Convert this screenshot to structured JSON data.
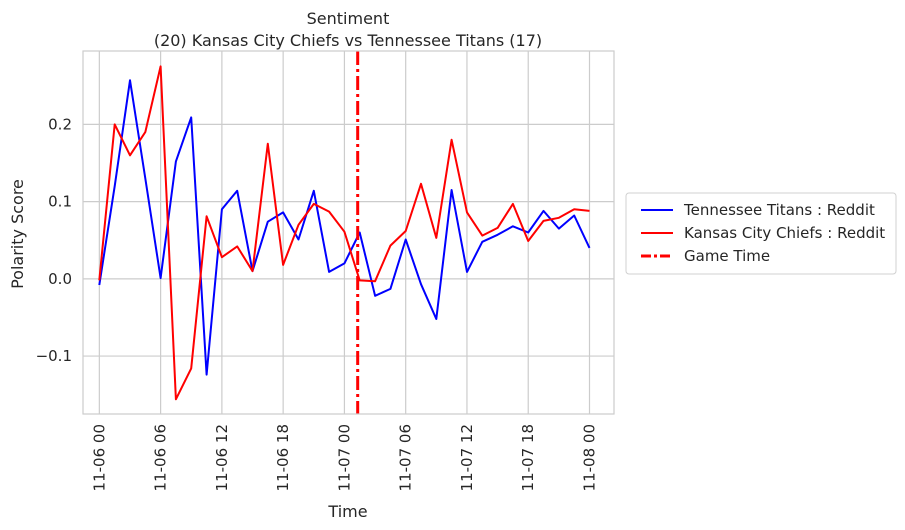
{
  "chart_data": {
    "type": "line",
    "title": "Sentiment",
    "subtitle": "(20) Kansas City Chiefs vs Tennessee Titans (17)",
    "xlabel": "Time",
    "ylabel": "Polarity Score",
    "ylim": [
      -0.175,
      0.295
    ],
    "y_ticks": [
      -0.1,
      0.0,
      0.1,
      0.2
    ],
    "y_tick_labels": [
      "−0.1",
      "0.0",
      "0.1",
      "0.2"
    ],
    "x_ticks": [
      0,
      6,
      12,
      18,
      24,
      30,
      36,
      42,
      48
    ],
    "x_tick_labels": [
      "11-06 00",
      "11-06 06",
      "11-06 12",
      "11-06 18",
      "11-07 00",
      "11-07 06",
      "11-07 12",
      "11-07 18",
      "11-08 00"
    ],
    "x_unit": "hours since 11-06 00",
    "grid": true,
    "legend_position": "right",
    "game_time": {
      "name": "Game Time",
      "x": 25.3,
      "color": "#ff0000"
    },
    "series": [
      {
        "name": "Tennessee Titans : Reddit",
        "color": "#0000ff",
        "x": [
          0,
          1.5,
          3,
          4.5,
          6,
          7.5,
          9,
          10.5,
          12,
          13.5,
          15,
          16.5,
          18,
          19.5,
          21,
          22.5,
          24,
          25.5,
          27,
          28.5,
          30,
          31.5,
          33,
          34.5,
          36,
          37.5,
          39,
          40.5,
          42,
          43.5,
          45,
          46.5,
          48
        ],
        "y": [
          -0.008,
          0.12,
          0.257,
          0.13,
          0.001,
          0.152,
          0.209,
          -0.124,
          0.09,
          0.114,
          0.01,
          0.074,
          0.086,
          0.051,
          0.114,
          0.009,
          0.02,
          0.06,
          -0.022,
          -0.013,
          0.051,
          -0.007,
          -0.052,
          0.115,
          0.009,
          0.048,
          0.057,
          0.068,
          0.06,
          0.088,
          0.065,
          0.082,
          0.04
        ]
      },
      {
        "name": "Kansas City Chiefs : Reddit",
        "color": "#ff0000",
        "x": [
          0,
          1.5,
          3,
          4.5,
          6,
          7.5,
          9,
          10.5,
          12,
          13.5,
          15,
          16.5,
          18,
          19.5,
          21,
          22.5,
          24,
          25.5,
          27,
          28.5,
          30,
          31.5,
          33,
          34.5,
          36,
          37.5,
          39,
          40.5,
          42,
          43.5,
          45,
          46.5,
          48
        ],
        "y": [
          -0.002,
          0.2,
          0.16,
          0.19,
          0.275,
          -0.156,
          -0.116,
          0.081,
          0.028,
          0.042,
          0.01,
          0.175,
          0.018,
          0.07,
          0.097,
          0.087,
          0.061,
          -0.002,
          -0.003,
          0.043,
          0.062,
          0.123,
          0.053,
          0.18,
          0.086,
          0.056,
          0.066,
          0.097,
          0.049,
          0.075,
          0.079,
          0.09,
          0.088
        ]
      }
    ]
  }
}
